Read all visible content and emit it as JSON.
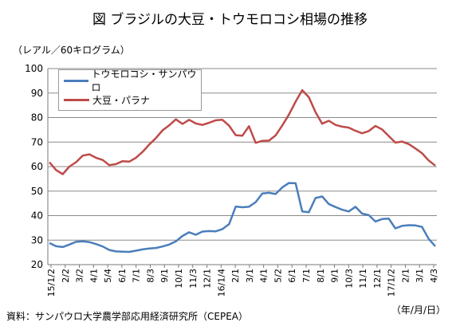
{
  "title": "図 ブラジルの大豆・トウモロコシ相場の推移",
  "unit_label": "（レアル／60キログラム）",
  "source_label": "資料：サンパウロ大学農学部応用経済研究所（CEPEA）",
  "x_unit_label": "（年/月/日）",
  "colors": {
    "corn": "#4a7ebb",
    "soy": "#be4b48",
    "grid": "#8a8a8a",
    "axis": "#7a7a7a"
  },
  "chart_data": {
    "type": "line",
    "title": "図 ブラジルの大豆・トウモロコシ相場の推移",
    "ylabel": "（レアル／60キログラム）",
    "xlabel": "（年/月/日）",
    "ylim": [
      20,
      100
    ],
    "yticks": [
      20,
      30,
      40,
      50,
      60,
      70,
      80,
      90,
      100
    ],
    "grid": true,
    "legend_position": "top-left",
    "xtick_labels": [
      "15/1/2",
      "2/2",
      "3/2",
      "4/1",
      "5/4",
      "6/1",
      "7/1",
      "8/3",
      "9/1",
      "10/1",
      "11/3",
      "12/1",
      "16/1/4",
      "2/1",
      "3/1",
      "4/1",
      "5/2",
      "6/1",
      "7/1",
      "8/1",
      "9/1",
      "10/3",
      "11/1",
      "12/1",
      "17/1/2",
      "2/1",
      "3/1",
      "4/3"
    ],
    "series": [
      {
        "name": "トウモロコシ・サンパウロ",
        "color": "#4a7ebb",
        "values": [
          28.8,
          27.5,
          27.2,
          28.2,
          29.3,
          29.5,
          29.2,
          28.4,
          27.4,
          26.0,
          25.4,
          25.3,
          25.2,
          25.7,
          26.2,
          26.6,
          26.8,
          27.4,
          28.2,
          29.5,
          31.7,
          33.2,
          32.2,
          33.5,
          33.7,
          33.6,
          34.5,
          36.5,
          43.7,
          43.4,
          43.6,
          45.5,
          49.0,
          49.3,
          48.8,
          51.5,
          53.3,
          53.2,
          41.7,
          41.4,
          47.2,
          47.8,
          44.7,
          43.5,
          42.4,
          41.7,
          43.6,
          40.8,
          40.2,
          37.6,
          38.6,
          38.8,
          34.8,
          35.8,
          36.1,
          36.0,
          35.4,
          30.5,
          27.5
        ]
      },
      {
        "name": "大豆・パラナ",
        "color": "#be4b48",
        "values": [
          61.8,
          58.6,
          56.9,
          60.0,
          61.8,
          64.5,
          65.0,
          63.6,
          62.7,
          60.6,
          61.0,
          62.2,
          62.0,
          63.6,
          66.0,
          69.0,
          71.6,
          74.8,
          76.8,
          79.3,
          77.4,
          79.1,
          77.6,
          77.0,
          77.9,
          78.9,
          79.1,
          76.7,
          72.8,
          72.6,
          76.5,
          69.7,
          70.5,
          70.6,
          72.7,
          76.8,
          81.2,
          86.5,
          91.2,
          88.3,
          82.2,
          77.5,
          78.7,
          77.0,
          76.3,
          75.9,
          74.6,
          73.6,
          74.5,
          76.6,
          75.2,
          72.5,
          69.8,
          70.2,
          69.2,
          67.4,
          65.5,
          62.5,
          60.4
        ]
      }
    ]
  }
}
